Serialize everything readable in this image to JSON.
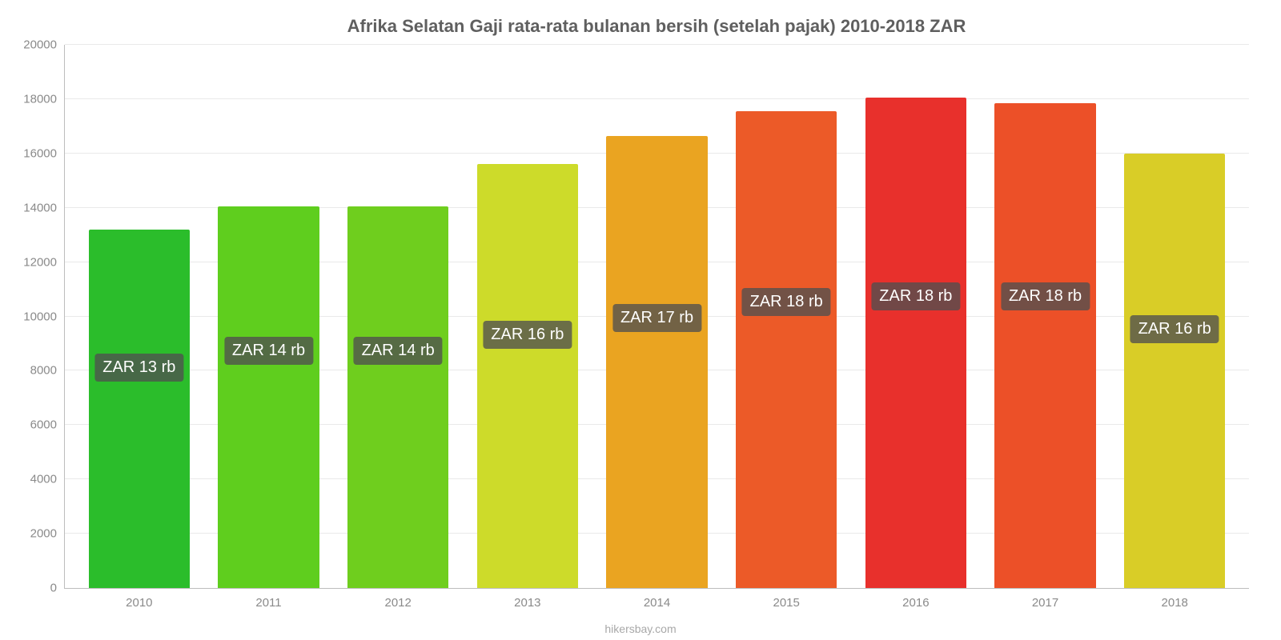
{
  "chart": {
    "type": "bar",
    "title": "Afrika Selatan Gaji rata-rata bulanan bersih (setelah pajak) 2010-2018 ZAR",
    "title_fontsize": 22,
    "title_color": "#5f5f5f",
    "background_color": "#ffffff",
    "grid_color": "#e9e9e9",
    "axis_color": "#bdbdbd",
    "tick_label_color": "#8a8a8a",
    "tick_label_fontsize": 15,
    "badge_bg": "rgba(80,80,80,0.78)",
    "badge_text_color": "#ffffff",
    "badge_fontsize": 20,
    "attribution": "hikersbay.com",
    "attribution_color": "#a8a8a8",
    "attribution_fontsize": 14,
    "ylim": [
      0,
      20000
    ],
    "ytick_step": 2000,
    "bar_width_pct": 78,
    "yticks": [
      {
        "value": 0,
        "label": "0"
      },
      {
        "value": 2000,
        "label": "2000"
      },
      {
        "value": 4000,
        "label": "4000"
      },
      {
        "value": 6000,
        "label": "6000"
      },
      {
        "value": 8000,
        "label": "8000"
      },
      {
        "value": 10000,
        "label": "10000"
      },
      {
        "value": 12000,
        "label": "12000"
      },
      {
        "value": 14000,
        "label": "14000"
      },
      {
        "value": 16000,
        "label": "16000"
      },
      {
        "value": 18000,
        "label": "18000"
      },
      {
        "value": 20000,
        "label": "20000"
      }
    ],
    "bars": [
      {
        "category": "2010",
        "value": 13200,
        "color": "#2bbd2b",
        "badge": "ZAR 13 rb",
        "badge_value_pct": 38
      },
      {
        "category": "2011",
        "value": 14050,
        "color": "#5fce1e",
        "badge": "ZAR 14 rb",
        "badge_value_pct": 41
      },
      {
        "category": "2012",
        "value": 14050,
        "color": "#6fce1e",
        "badge": "ZAR 14 rb",
        "badge_value_pct": 41
      },
      {
        "category": "2013",
        "value": 15600,
        "color": "#cddb2a",
        "badge": "ZAR 16 rb",
        "badge_value_pct": 44
      },
      {
        "category": "2014",
        "value": 16650,
        "color": "#eaa421",
        "badge": "ZAR 17 rb",
        "badge_value_pct": 47
      },
      {
        "category": "2015",
        "value": 17550,
        "color": "#ec5a28",
        "badge": "ZAR 18 rb",
        "badge_value_pct": 50
      },
      {
        "category": "2016",
        "value": 18050,
        "color": "#e8302c",
        "badge": "ZAR 18 rb",
        "badge_value_pct": 51
      },
      {
        "category": "2017",
        "value": 17850,
        "color": "#ec5028",
        "badge": "ZAR 18 rb",
        "badge_value_pct": 51
      },
      {
        "category": "2018",
        "value": 16000,
        "color": "#d9cd27",
        "badge": "ZAR 16 rb",
        "badge_value_pct": 45
      }
    ]
  }
}
